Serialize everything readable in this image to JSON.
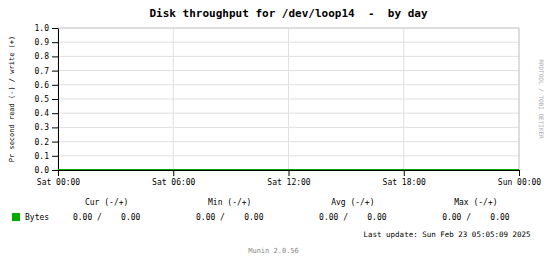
{
  "chart_data": {
    "type": "line",
    "title": "Disk throughput for /dev/loop14  -  by day",
    "ylabel": "Pr second read (-) / write (+)",
    "categories": [
      "Sat 00:00",
      "Sat 06:00",
      "Sat 12:00",
      "Sat 18:00",
      "Sun 00:00"
    ],
    "series": [
      {
        "name": "Bytes",
        "color": "#00aa00",
        "values": [
          0,
          0,
          0,
          0,
          0
        ]
      }
    ],
    "ylim": [
      0.0,
      1.0
    ],
    "yticks": [
      {
        "value": 0.0,
        "label": "0.0"
      },
      0.1,
      0.2,
      0.3,
      0.4,
      0.5,
      0.6,
      0.7,
      0.8,
      0.9,
      {
        "value": 1.0,
        "label": "1.0"
      }
    ],
    "grid": true,
    "annotations": [
      "Cur (-/+)",
      "Min (-/+)",
      "Avg (-/+)",
      "Max (-/+)",
      "0.00 /    0.00",
      "0.00 /    0.00",
      "0.00 /    0.00",
      "0.00 /    0.00",
      "Last update: Sun Feb 23 05:05:09 2025",
      "Munin 2.0.56",
      "RRDTOOL / TOBI OETIKER"
    ]
  }
}
